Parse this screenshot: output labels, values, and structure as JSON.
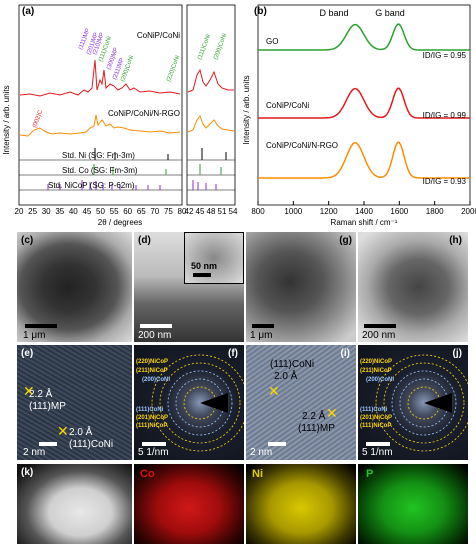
{
  "panel_a": {
    "label": "(a)",
    "ylabel": "Intensity / arb. units",
    "xlabel": "2θ / degrees",
    "traces": [
      "CoNiP/CoNi",
      "CoNiP/CoNi/N-RGO"
    ],
    "refs": [
      "Std. Ni (SG: Fm-3m)",
      "Std. Co (SG: Fm-3m)",
      "Std. NiCoP (SG: P-62m)"
    ],
    "xticks_left": [
      "20",
      "25",
      "30",
      "35",
      "40",
      "45",
      "50",
      "55",
      "60",
      "65",
      "70",
      "75",
      "80"
    ],
    "xticks_right": [
      "42",
      "45",
      "48",
      "51",
      "54"
    ],
    "peak_labels": [
      "(111)MP",
      "(201)MP",
      "(210)MP",
      "(111)CoNi",
      "(300)MP",
      "(211)MP",
      "(200)CoNi",
      "(220)CoNi",
      "(002)C",
      "(111)CoNi",
      "(200)CoNi"
    ]
  },
  "chart_data": {
    "type": "line",
    "title": "",
    "xlabel": "Raman shift / cm⁻¹",
    "ylabel": "Intensity / arb. units",
    "xlim": [
      800,
      2000
    ],
    "xticks": [
      "800",
      "1000",
      "1200",
      "1400",
      "1600",
      "1800",
      "2000"
    ],
    "band_labels": [
      "D band",
      "G band"
    ],
    "series": [
      {
        "name": "GO",
        "color": "#2ca02c",
        "ratio": "ID/IG = 0.95"
      },
      {
        "name": "CoNiP/CoNi",
        "color": "#e31a1c",
        "ratio": "ID/IG = 0.99"
      },
      {
        "name": "CoNiP/CoNi/N-RGO",
        "color": "#ff8c00",
        "ratio": "ID/IG = 0.93"
      }
    ],
    "panel_label": "(b)"
  },
  "tem": {
    "c": {
      "label": "(c)",
      "scale": "1 μm"
    },
    "d": {
      "label": "(d)",
      "scale": "200 nm",
      "inset_scale": "50 nm"
    },
    "g": {
      "label": "(g)",
      "scale": "1 μm"
    },
    "h": {
      "label": "(h)",
      "scale": "200 nm"
    }
  },
  "hrtem": {
    "e": {
      "label": "(e)",
      "scale": "2 nm",
      "d1": "2.2 Å",
      "d1_plane": "(111)MP",
      "d2": "2.0 Å",
      "d2_plane": "(111)CoNi"
    },
    "f": {
      "label": "(f)",
      "scale": "5 1/nm",
      "rings": [
        "(220)NiCoP",
        "(211)NiCoP",
        "(200)CoNi",
        "(111)CoNi",
        "(201)NiCoP",
        "(111)NiCoP"
      ]
    },
    "i": {
      "label": "(i)",
      "scale": "2 nm",
      "d1": "2.0 Å",
      "d1_plane": "(111)CoNi",
      "d2": "2.2 Å",
      "d2_plane": "(111)MP"
    },
    "j": {
      "label": "(j)",
      "scale": "5 1/nm",
      "rings": [
        "(220)NiCoP",
        "(211)NiCoP",
        "(200)CoNi",
        "(111)CoNi",
        "(201)NiCoP",
        "(111)NiCoP"
      ]
    }
  },
  "eds": {
    "k": {
      "label": "(k)"
    },
    "co": {
      "label": "Co",
      "color": "#e01010"
    },
    "ni": {
      "label": "Ni",
      "color": "#e0d000"
    },
    "p": {
      "label": "P",
      "color": "#22c422"
    }
  }
}
